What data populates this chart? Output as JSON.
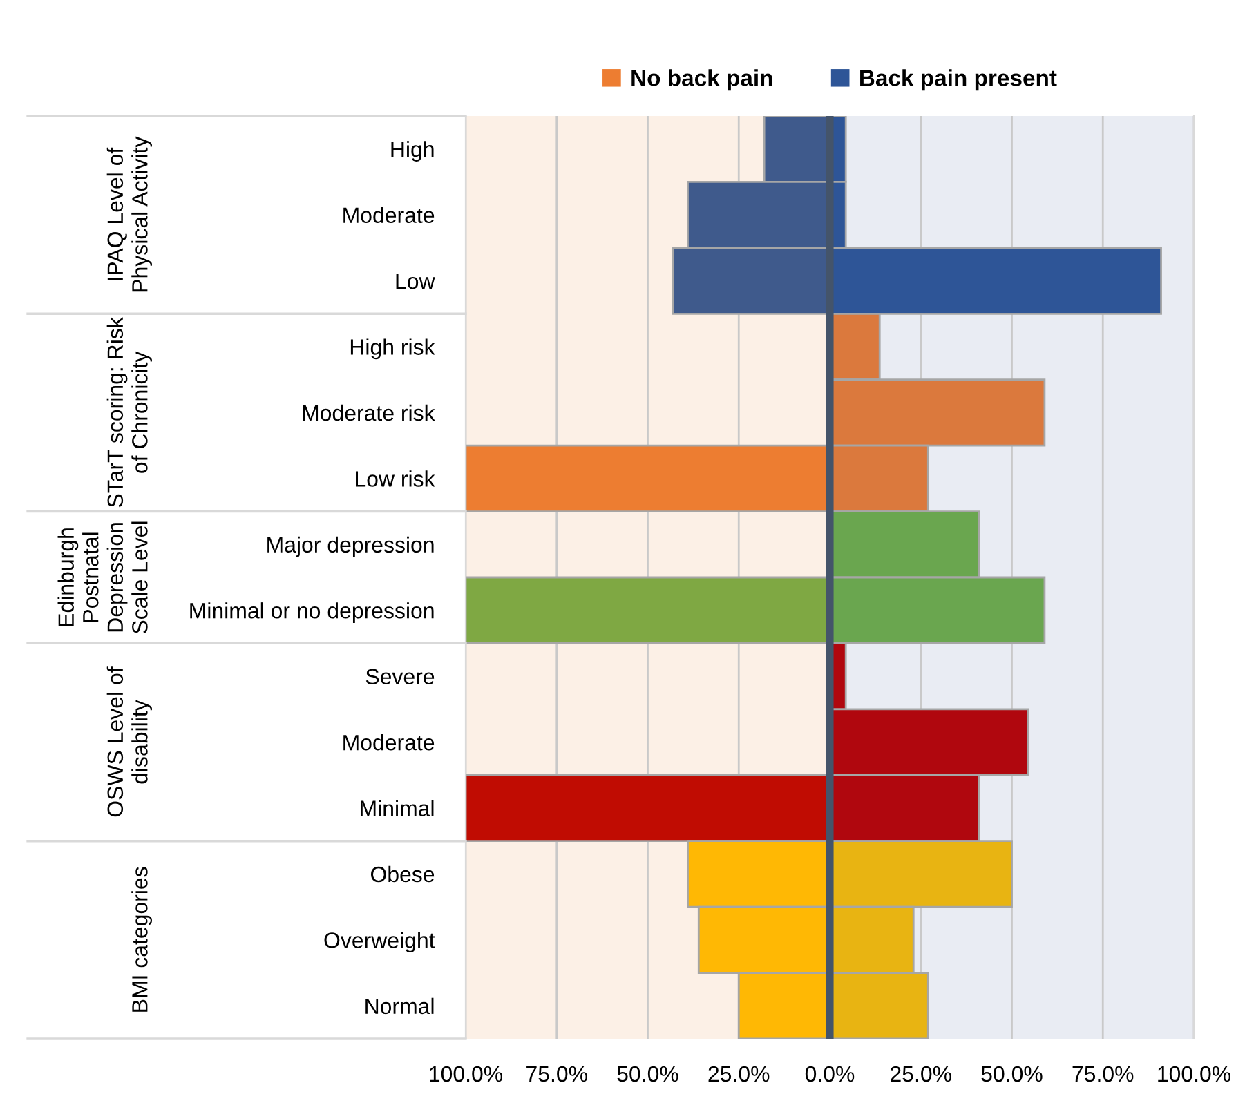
{
  "chart_data": {
    "type": "bar",
    "orientation": "horizontal",
    "categories": [
      "High",
      "Moderate",
      "Low",
      "High risk",
      "Moderate risk",
      "Low risk",
      "Major depression",
      "Minimal or no depression",
      "Severe",
      "Moderate",
      "Minimal",
      "Obese",
      "Overweight",
      "Normal"
    ],
    "series": [
      {
        "name": "No back pain",
        "color": "#ed7d31",
        "colors": [
          "#3f5a8c",
          "#3f5a8c",
          "#3f5a8c",
          "#ed7d31",
          "#ed7d31",
          "#ed7d31",
          "#7fa843",
          "#7fa843",
          "#c00c02",
          "#c00c02",
          "#c00c02",
          "#ffb804",
          "#ffb804",
          "#ffb804"
        ],
        "values": [
          -18,
          -39,
          -43,
          0,
          0,
          -100,
          0,
          -100,
          0,
          0,
          -100,
          -39,
          -36,
          -25
        ]
      },
      {
        "name": "Back pain present",
        "color": "#2e5597",
        "colors": [
          "#2e5597",
          "#2e5597",
          "#2e5597",
          "#db793d",
          "#db793d",
          "#db793d",
          "#6aa64f",
          "#6aa64f",
          "#b0070e",
          "#b0070e",
          "#b0070e",
          "#e8b412",
          "#e8b412",
          "#e8b412"
        ],
        "values": [
          4.4,
          4.4,
          91,
          13.7,
          59,
          27,
          41,
          59,
          4.4,
          54.5,
          41,
          50,
          23,
          27
        ]
      }
    ],
    "xlim": [
      -100,
      100
    ],
    "xticks": [
      {
        "value": -100,
        "label": "100.0%"
      },
      {
        "value": -75,
        "label": "75.0%"
      },
      {
        "value": -50,
        "label": "50.0%"
      },
      {
        "value": -25,
        "label": "25.0%"
      },
      {
        "value": 0,
        "label": "0.0%"
      },
      {
        "value": 25,
        "label": "25.0%"
      },
      {
        "value": 50,
        "label": "50.0%"
      },
      {
        "value": 75,
        "label": "75.0%"
      },
      {
        "value": 100,
        "label": "100.0%"
      }
    ],
    "bands": [
      {
        "axis": "x",
        "from": -100,
        "to": 0,
        "color": "#fcf0e6"
      },
      {
        "axis": "x",
        "from": 0,
        "to": 100,
        "color": "#e9ecf3"
      }
    ],
    "ref_lines": [
      {
        "axis": "x",
        "value": 0,
        "color": "#44546a"
      }
    ],
    "annotations": [
      "IPAQ Level of\nPhysical Activity",
      "STarT scoring: Risk\nof Chronicity",
      "Edinburgh\nPostnatal\nDepression\nScale Level",
      "OSWS Level of\ndisability",
      "BMI categories"
    ],
    "stacked": true,
    "grid": "x",
    "legend": "top"
  }
}
